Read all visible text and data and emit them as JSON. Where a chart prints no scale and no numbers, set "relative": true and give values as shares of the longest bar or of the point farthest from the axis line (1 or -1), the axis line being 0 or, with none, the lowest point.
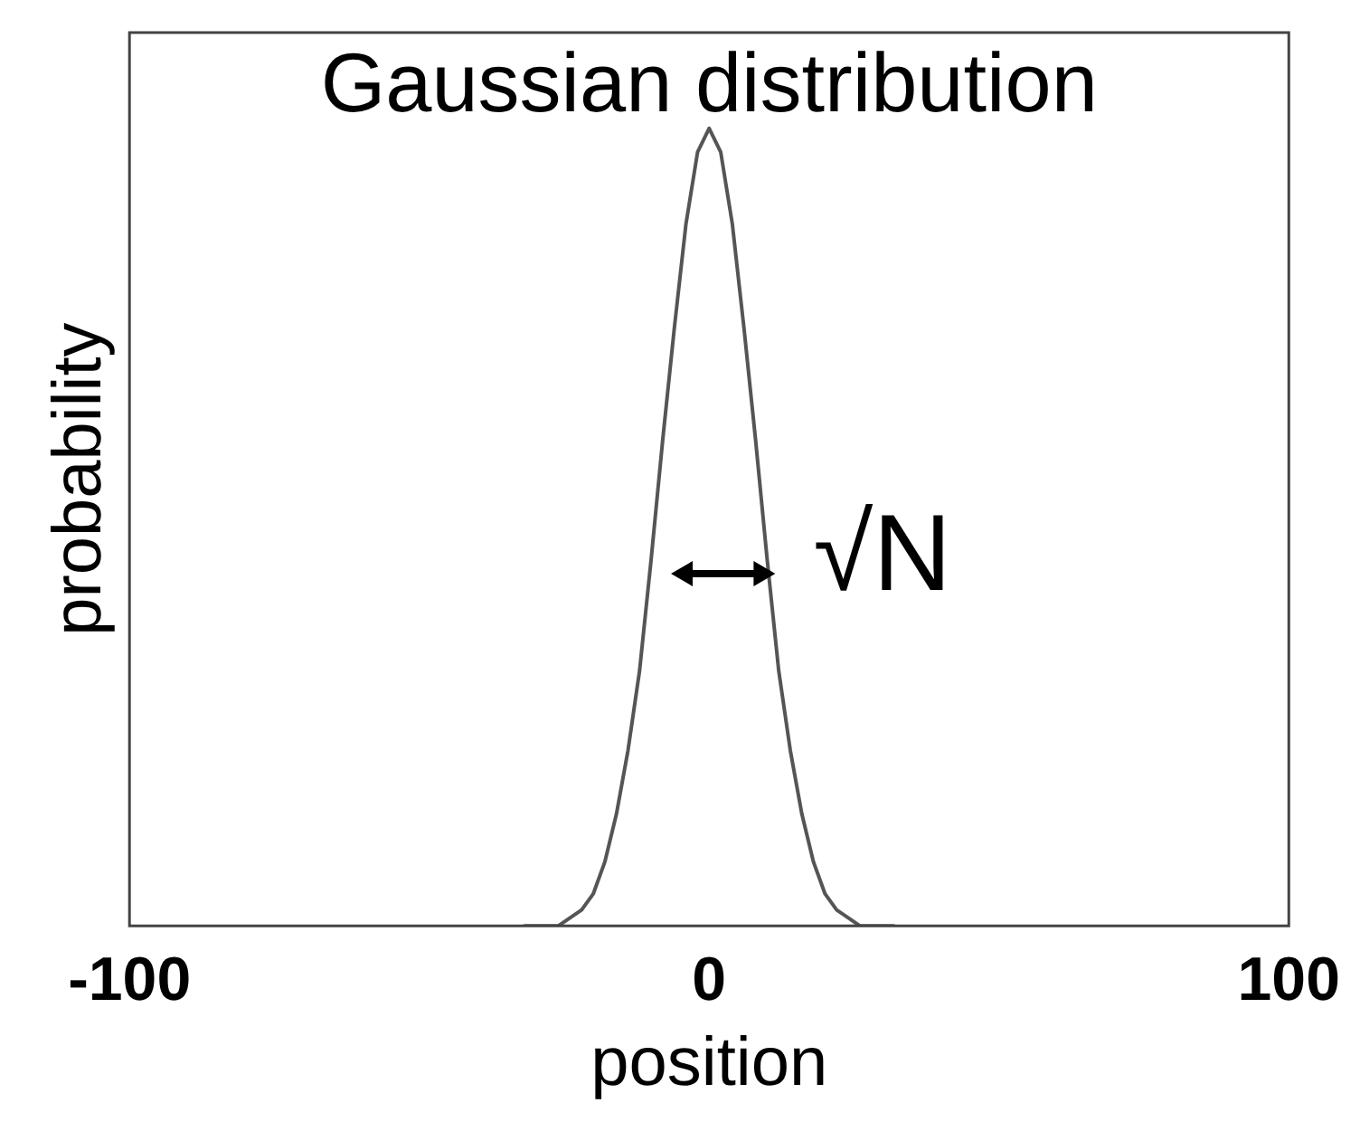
{
  "chart_data": {
    "type": "line",
    "title": "Gaussian distribution",
    "xlabel": "position",
    "ylabel": "probability",
    "relative": true,
    "x": [
      -32,
      -30,
      -26,
      -24,
      -22,
      -20,
      -18,
      -16,
      -14,
      -12,
      -10,
      -8,
      -6,
      -4,
      -2,
      0,
      2,
      4,
      6,
      8,
      10,
      12,
      14,
      16,
      18,
      20,
      22,
      24,
      26,
      30,
      32
    ],
    "series": [
      {
        "color": "#555555",
        "values": [
          0,
          0,
          0,
          0.01,
          0.02,
          0.04,
          0.08,
          0.14,
          0.22,
          0.32,
          0.46,
          0.61,
          0.75,
          0.88,
          0.97,
          1,
          0.97,
          0.88,
          0.75,
          0.61,
          0.46,
          0.32,
          0.22,
          0.14,
          0.08,
          0.04,
          0.02,
          0.01,
          0,
          0,
          0
        ]
      }
    ],
    "xlim": [
      -100,
      100
    ],
    "xticks": [
      -100,
      0,
      100
    ],
    "grid": false,
    "legend": false,
    "marker": "none",
    "line_style": "solid",
    "annotations": [
      "√N"
    ]
  }
}
